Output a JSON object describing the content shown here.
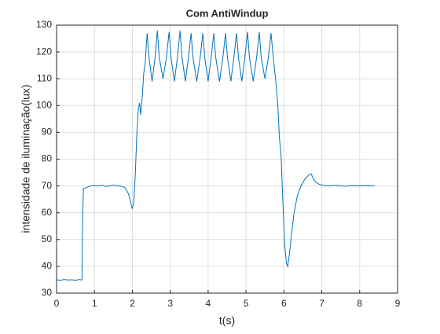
{
  "chart_data": {
    "type": "line",
    "title": "Com AntiWindup",
    "xlabel": "t(s)",
    "ylabel": "intensidade de iluminação(lux)",
    "x": [
      0,
      0.1,
      0.2,
      0.3,
      0.4,
      0.5,
      0.6,
      0.67,
      0.69,
      0.71,
      0.8,
      0.9,
      1.0,
      1.1,
      1.2,
      1.3,
      1.4,
      1.5,
      1.6,
      1.7,
      1.8,
      1.9,
      1.97,
      2.0,
      2.04,
      2.08,
      2.12,
      2.16,
      2.19,
      2.22,
      2.26,
      2.3,
      2.34,
      2.39,
      2.44,
      2.52,
      2.6,
      2.66,
      2.71,
      2.81,
      2.9,
      2.97,
      3.02,
      3.11,
      3.19,
      3.26,
      3.31,
      3.4,
      3.48,
      3.55,
      3.6,
      3.7,
      3.79,
      3.86,
      3.91,
      4.0,
      4.08,
      4.15,
      4.2,
      4.3,
      4.39,
      4.46,
      4.51,
      4.6,
      4.68,
      4.75,
      4.8,
      4.89,
      4.97,
      5.04,
      5.09,
      5.19,
      5.28,
      5.35,
      5.4,
      5.5,
      5.59,
      5.66,
      5.72,
      5.78,
      5.84,
      5.88,
      5.91,
      5.93,
      5.97,
      6.02,
      6.07,
      6.1,
      6.15,
      6.2,
      6.27,
      6.35,
      6.45,
      6.55,
      6.65,
      6.72,
      6.8,
      6.9,
      7.0,
      7.2,
      7.4,
      7.6,
      7.8,
      8.0,
      8.2,
      8.4
    ],
    "values": [
      35,
      34.8,
      35.1,
      34.9,
      35,
      34.8,
      35.1,
      34.9,
      60,
      69,
      69.5,
      70,
      70.1,
      70,
      70.2,
      69.8,
      70,
      70.3,
      70,
      69.9,
      69.5,
      67,
      63,
      61.5,
      64,
      75,
      90,
      99,
      101,
      96.5,
      103,
      112,
      116,
      127,
      118,
      109,
      118,
      128,
      118,
      110,
      118,
      127.5,
      118,
      109,
      118,
      128,
      118,
      109,
      118,
      127,
      118,
      109,
      118,
      127,
      118,
      109,
      118,
      127,
      118,
      109,
      118,
      127,
      118,
      109,
      118,
      127,
      118,
      109,
      118,
      127.5,
      118,
      109,
      118,
      127.5,
      118,
      110,
      118,
      127,
      118,
      110,
      100,
      88,
      84,
      80,
      65,
      48,
      41,
      40,
      45,
      52,
      60,
      66,
      70,
      72.5,
      74,
      74.5,
      72,
      70.8,
      70.3,
      70,
      70.2,
      69.9,
      70.1,
      70,
      70.1,
      70
    ],
    "color": "#0072bd",
    "xlim": [
      0,
      9
    ],
    "xticks": [
      0,
      1,
      2,
      3,
      4,
      5,
      6,
      7,
      8,
      9
    ],
    "ylim": [
      30,
      130
    ],
    "yticks": [
      30,
      40,
      50,
      60,
      70,
      80,
      90,
      100,
      110,
      120,
      130
    ],
    "grid": true
  }
}
